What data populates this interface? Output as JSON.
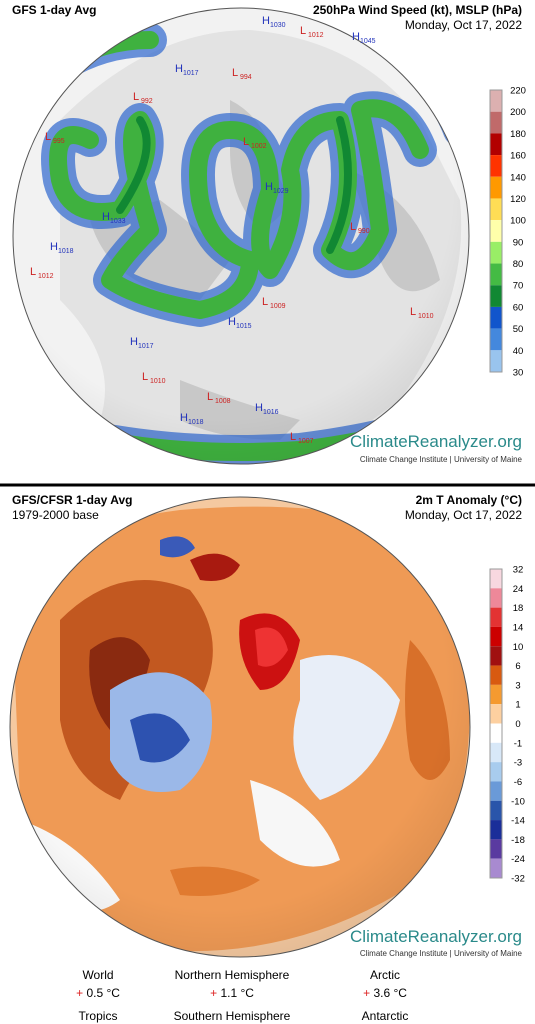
{
  "panels": [
    {
      "title": "GFS 1-day Avg",
      "variable": "250hPa Wind Speed (kt), MSLP (hPa)",
      "date": "Monday, Oct 17, 2022",
      "colorbar": {
        "labels": [
          220,
          200,
          180,
          160,
          140,
          120,
          100,
          90,
          80,
          70,
          60,
          50,
          40,
          30
        ],
        "colors": [
          "#dcb0b0",
          "#c06a6a",
          "#b20000",
          "#ff3300",
          "#ff9900",
          "#ffdd55",
          "#ffffaa",
          "#99ee66",
          "#44bb44",
          "#118833",
          "#1155cc",
          "#4488dd",
          "#99c4ee"
        ]
      },
      "pressure_labels": [
        {
          "type": "H",
          "value": 1030
        },
        {
          "type": "L",
          "value": 1012
        },
        {
          "type": "H",
          "value": 1045
        },
        {
          "type": "L",
          "value": 994
        },
        {
          "type": "H",
          "value": 1017
        },
        {
          "type": "L",
          "value": 992
        },
        {
          "type": "L",
          "value": 995
        },
        {
          "type": "L",
          "value": 1002
        },
        {
          "type": "H",
          "value": 1018
        },
        {
          "type": "L",
          "value": 1012
        },
        {
          "type": "H",
          "value": 1033
        },
        {
          "type": "L",
          "value": 990
        },
        {
          "type": "H",
          "value": 1029
        },
        {
          "type": "L",
          "value": 1009
        },
        {
          "type": "H",
          "value": 1015
        },
        {
          "type": "L",
          "value": 1010
        },
        {
          "type": "H",
          "value": 1017
        },
        {
          "type": "L",
          "value": 1010
        },
        {
          "type": "L",
          "value": 1008
        },
        {
          "type": "H",
          "value": 1016
        },
        {
          "type": "L",
          "value": 1007
        },
        {
          "type": "H",
          "value": 1018
        }
      ],
      "brand": "ClimateReanalyzer.org",
      "affiliation": "Climate Change Institute | University of Maine"
    },
    {
      "title": "GFS/CFSR 1-day Avg",
      "subtitle": "1979-2000 base",
      "variable": "2m T Anomaly (°C)",
      "date": "Monday, Oct 17, 2022",
      "colorbar": {
        "labels": [
          32,
          24,
          18,
          14,
          10,
          6,
          3,
          1,
          0,
          -1,
          -3,
          -6,
          -10,
          -14,
          -18,
          -24,
          -32
        ],
        "colors": [
          "#f8d8e0",
          "#ee8899",
          "#e33333",
          "#cc0000",
          "#a01010",
          "#d85a10",
          "#f59a30",
          "#fdd0a0",
          "#ffffff",
          "#d8e8f8",
          "#a8ccee",
          "#6a9ad8",
          "#2a55aa",
          "#1a2e99",
          "#5a3aa0",
          "#a88ad0"
        ]
      },
      "brand": "ClimateReanalyzer.org",
      "affiliation": "Climate Change Institute | University of Maine",
      "stats": [
        {
          "region": "World",
          "sign": "+",
          "value": "0.5 °C"
        },
        {
          "region": "Northern Hemisphere",
          "sign": "+",
          "value": "1.1 °C"
        },
        {
          "region": "Arctic",
          "sign": "+",
          "value": "3.6 °C"
        },
        {
          "region": "Tropics"
        },
        {
          "region": "Southern Hemisphere"
        },
        {
          "region": "Antarctic"
        }
      ]
    }
  ]
}
